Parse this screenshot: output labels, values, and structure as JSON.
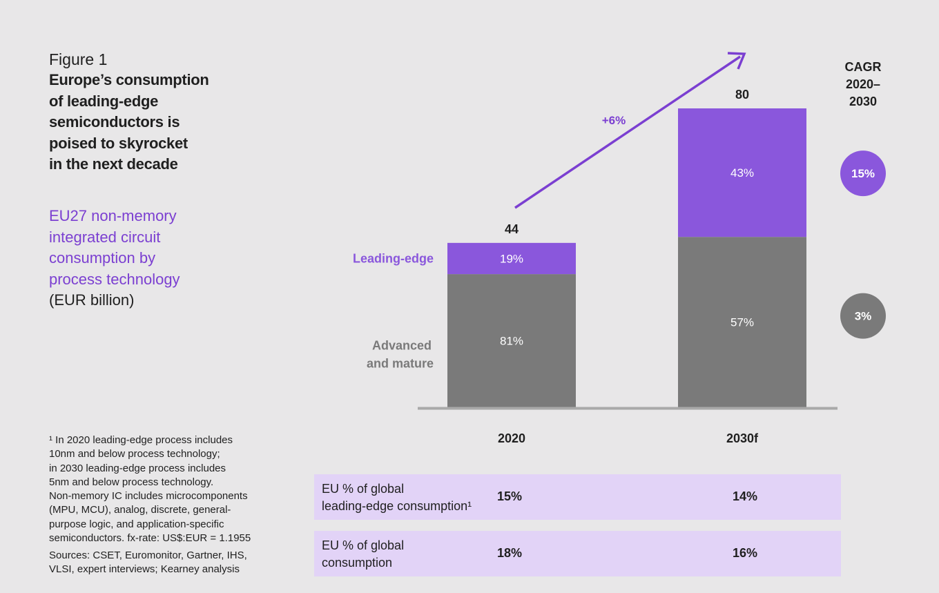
{
  "figure_label": "Figure 1",
  "title_lines": [
    "Europe’s consumption",
    "of leading-edge",
    "semiconductors is",
    "poised to skyrocket",
    "in the next decade"
  ],
  "subtitle_lines": [
    "EU27 non-memory",
    "integrated circuit",
    "consumption by",
    "process technology"
  ],
  "unit": "(EUR billion)",
  "footnote_lines": [
    "¹ In 2020 leading-edge process includes",
    "10nm and below process technology;",
    "in 2030 leading-edge process includes",
    "5nm and below process technology.",
    "Non-memory IC includes microcomponents",
    "(MPU, MCU), analog, discrete, general-",
    "purpose logic, and application-specific",
    "semiconductors. fx-rate: US$:EUR = 1.1955"
  ],
  "sources_lines": [
    "Sources: CSET, Euromonitor, Gartner, IHS,",
    "VLSI, expert interviews; Kearney analysis"
  ],
  "colors": {
    "leading": "#8a57dc",
    "advanced": "#7a7a7a",
    "accent": "#7b3fd1",
    "band": "#e2d3f7",
    "baseline": "#a9a9a9"
  },
  "chart_data": {
    "type": "bar",
    "stacked": true,
    "categories": [
      "2020",
      "2030f"
    ],
    "totals": [
      44,
      80
    ],
    "series": [
      {
        "name": "Advanced and mature",
        "name_lines": [
          "Advanced",
          "and mature"
        ],
        "shares": [
          81,
          57
        ],
        "share_labels": [
          "81%",
          "57%"
        ],
        "cagr": "3%"
      },
      {
        "name": "Leading-edge",
        "name_lines": [
          "Leading-edge"
        ],
        "shares": [
          19,
          43
        ],
        "share_labels": [
          "19%",
          "43%"
        ],
        "cagr": "15%"
      }
    ],
    "growth_arrow_label": "+6%",
    "cagr_title_lines": [
      "CAGR",
      "2020–",
      "2030"
    ],
    "ylim": [
      0,
      80
    ]
  },
  "table": {
    "rows": [
      {
        "label_lines": [
          "EU % of global",
          "leading-edge consumption¹"
        ],
        "values": [
          "15%",
          "14%"
        ]
      },
      {
        "label_lines": [
          "EU % of global",
          "consumption"
        ],
        "values": [
          "18%",
          "16%"
        ]
      }
    ]
  }
}
